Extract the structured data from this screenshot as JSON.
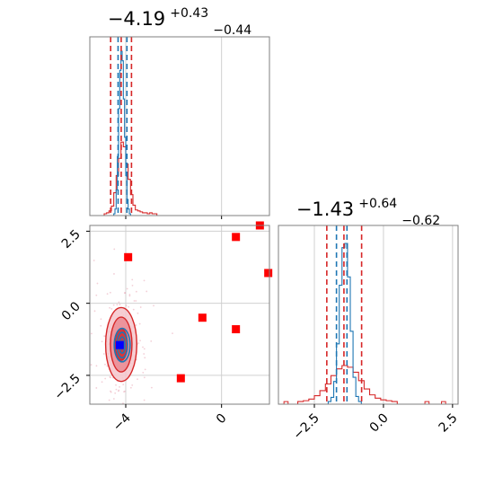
{
  "chart_data": {
    "type": "corner",
    "panels": [
      {
        "name": "marginal-param-1",
        "type": "histogram",
        "title": {
          "main": "−4.19",
          "sup": "+0.43",
          "sub": "−0.44"
        },
        "xlim": [
          -5.5,
          2.0
        ],
        "grid": true,
        "vlines": {
          "red": [
            -4.63,
            -4.19,
            -3.76
          ],
          "blue": [
            -4.32,
            -3.95
          ]
        },
        "series": [
          {
            "color": "#d62728",
            "bins": [
              -4.9,
              -4.8,
              -4.7,
              -4.6,
              -4.5,
              -4.4,
              -4.3,
              -4.2,
              -4.1,
              -4.0,
              -3.9,
              -3.8,
              -3.7,
              -3.6,
              -3.5,
              -3.4,
              -3.3,
              -3.2,
              -3.1,
              -3.0,
              -2.9,
              -2.8
            ],
            "counts": [
              0,
              1,
              3,
              8,
              22,
              40,
              58,
              75,
              70,
              52,
              36,
              20,
              9,
              4,
              3,
              2,
              1,
              1,
              0,
              1,
              0,
              0
            ]
          },
          {
            "color": "#1f77b4",
            "bins": [
              -4.5,
              -4.45,
              -4.4,
              -4.35,
              -4.3,
              -4.25,
              -4.2,
              -4.15,
              -4.1,
              -4.05,
              -4.0,
              -3.95,
              -3.9,
              -3.85
            ],
            "counts": [
              0,
              5,
              25,
              60,
              110,
              150,
              170,
              160,
              120,
              80,
              40,
              15,
              5,
              0
            ]
          }
        ]
      },
      {
        "name": "marginal-param-2",
        "type": "histogram",
        "title": {
          "main": "−1.43",
          "sup": "+0.64",
          "sub": "−0.62"
        },
        "xlim": [
          -3.8,
          2.7
        ],
        "grid": true,
        "x_ticks": [
          "−2.5",
          "0.0",
          "2.5"
        ],
        "vlines": {
          "red": [
            -2.05,
            -1.43,
            -0.79
          ],
          "blue": [
            -1.7,
            -1.32
          ]
        },
        "series": [
          {
            "color": "#d62728",
            "bins": [
              -3.1,
              -2.9,
              -2.7,
              -2.5,
              -2.3,
              -2.1,
              -1.9,
              -1.7,
              -1.5,
              -1.3,
              -1.1,
              -0.9,
              -0.7,
              -0.5,
              -0.3,
              -0.1,
              0.1,
              0.3
            ],
            "counts": [
              1,
              2,
              4,
              8,
              14,
              22,
              32,
              40,
              44,
              42,
              36,
              26,
              16,
              9,
              5,
              3,
              2,
              1
            ]
          },
          {
            "color": "#1f77b4",
            "bins": [
              -2.0,
              -1.9,
              -1.8,
              -1.7,
              -1.6,
              -1.5,
              -1.4,
              -1.3,
              -1.2,
              -1.1,
              -1.0,
              -0.9
            ],
            "counts": [
              1,
              6,
              25,
              70,
              140,
              185,
              190,
              150,
              85,
              30,
              7,
              1
            ]
          }
        ]
      },
      {
        "name": "joint-param-1-2",
        "type": "scatter",
        "xlim": [
          -5.5,
          2.0
        ],
        "ylim": [
          -3.5,
          2.7
        ],
        "grid": true,
        "x_ticks": [
          "−4",
          "0"
        ],
        "y_ticks": [
          "2.5",
          "0.0",
          "−2.5"
        ],
        "red_squares": [
          {
            "x": -3.9,
            "y": 1.6
          },
          {
            "x": 1.6,
            "y": 2.7
          },
          {
            "x": 0.6,
            "y": 2.3
          },
          {
            "x": 1.95,
            "y": 1.05
          },
          {
            "x": -0.8,
            "y": -0.5
          },
          {
            "x": 0.6,
            "y": -0.9
          },
          {
            "x": -1.7,
            "y": -2.6
          }
        ],
        "blue_square": {
          "x": -4.25,
          "y": -1.45
        },
        "contours": {
          "red_center": {
            "x": -4.19,
            "y": -1.43
          },
          "red_radii": [
            [
              0.26,
              0.55
            ],
            [
              0.45,
              0.95
            ],
            [
              0.65,
              1.28
            ]
          ],
          "blue_center": {
            "x": -4.15,
            "y": -1.45
          },
          "blue_radii": [
            [
              0.12,
              0.28
            ],
            [
              0.22,
              0.44
            ],
            [
              0.33,
              0.58
            ]
          ]
        }
      }
    ]
  }
}
